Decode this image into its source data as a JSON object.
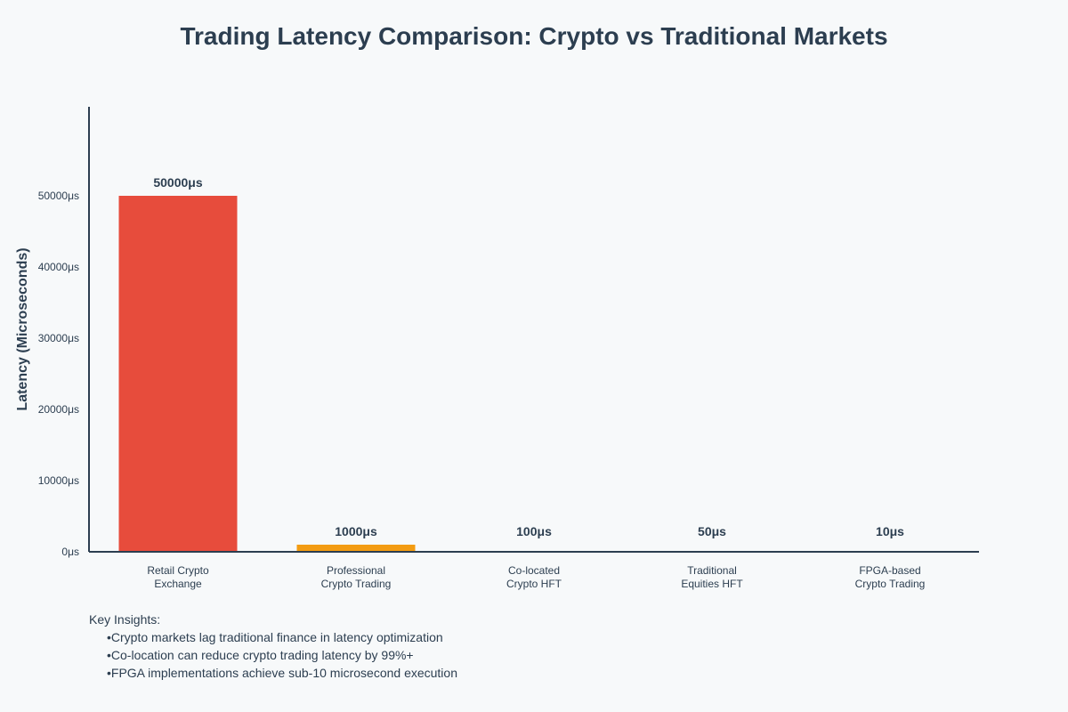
{
  "chart_data": {
    "type": "bar",
    "title": "Trading Latency Comparison: Crypto vs Traditional Markets",
    "xlabel": "",
    "ylabel": "Latency (Microseconds)",
    "ylim": [
      0,
      62500
    ],
    "yticks": [
      0,
      10000,
      20000,
      30000,
      40000,
      50000
    ],
    "unit": "μs",
    "grid": false,
    "categories": [
      [
        "Retail Crypto",
        "Exchange"
      ],
      [
        "Professional",
        "Crypto Trading"
      ],
      [
        "Co-located",
        "Crypto HFT"
      ],
      [
        "Traditional",
        "Equities HFT"
      ],
      [
        "FPGA-based",
        "Crypto Trading"
      ]
    ],
    "values": [
      50000,
      1000,
      100,
      50,
      10
    ],
    "value_labels": [
      "50000μs",
      "1000μs",
      "100μs",
      "50μs",
      "10μs"
    ],
    "colors": [
      "#e74c3c",
      "#f39c12",
      "#27ae60",
      "#2980b9",
      "#8e44ad"
    ]
  },
  "insights": {
    "heading": "Key Insights:",
    "items": [
      "Crypto markets lag traditional finance in latency optimization",
      "Co-location can reduce crypto trading latency by 99%+",
      "FPGA implementations achieve sub-10 microsecond execution"
    ]
  }
}
